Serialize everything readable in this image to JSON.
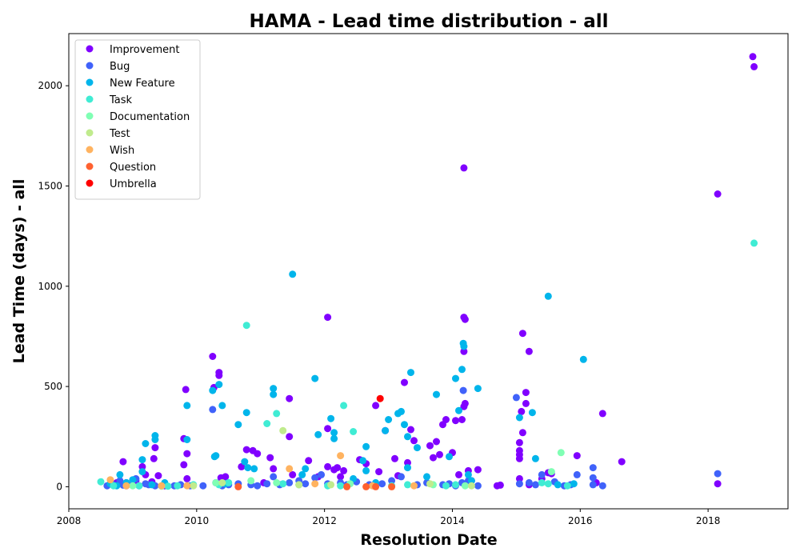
{
  "chart_data": {
    "type": "scatter",
    "title": "HAMA - Lead time distribution - all",
    "xlabel": "Resolution Date",
    "ylabel": "Lead Time (days) - all",
    "xlim": [
      2008.0,
      2019.25
    ],
    "ylim": [
      -110,
      2260
    ],
    "x_ticks": [
      "2008",
      "2010",
      "2012",
      "2014",
      "2016",
      "2018"
    ],
    "x_tick_values": [
      2008,
      2010,
      2012,
      2014,
      2016,
      2018
    ],
    "y_ticks": [
      "0",
      "500",
      "1000",
      "1500",
      "2000"
    ],
    "y_tick_values": [
      0,
      500,
      1000,
      1500,
      2000
    ],
    "grid": false,
    "legend_position": "top-left",
    "series": [
      {
        "name": "Improvement",
        "color": "#8000ff",
        "points": [
          [
            2008.75,
            20
          ],
          [
            2008.85,
            125
          ],
          [
            2008.9,
            5
          ],
          [
            2009.0,
            10
          ],
          [
            2009.05,
            30
          ],
          [
            2009.15,
            100
          ],
          [
            2009.2,
            60
          ],
          [
            2009.3,
            25
          ],
          [
            2009.33,
            140
          ],
          [
            2009.35,
            195
          ],
          [
            2009.4,
            55
          ],
          [
            2009.5,
            5
          ],
          [
            2009.8,
            240
          ],
          [
            2009.8,
            110
          ],
          [
            2009.83,
            485
          ],
          [
            2009.85,
            165
          ],
          [
            2009.85,
            40
          ],
          [
            2010.25,
            650
          ],
          [
            2010.27,
            495
          ],
          [
            2010.35,
            570
          ],
          [
            2010.35,
            555
          ],
          [
            2010.38,
            45
          ],
          [
            2010.45,
            50
          ],
          [
            2010.7,
            100
          ],
          [
            2010.78,
            185
          ],
          [
            2010.88,
            180
          ],
          [
            2010.95,
            165
          ],
          [
            2011.05,
            20
          ],
          [
            2011.15,
            145
          ],
          [
            2011.2,
            90
          ],
          [
            2011.45,
            440
          ],
          [
            2011.45,
            250
          ],
          [
            2011.5,
            60
          ],
          [
            2011.75,
            130
          ],
          [
            2011.9,
            50
          ],
          [
            2012.05,
            845
          ],
          [
            2012.05,
            290
          ],
          [
            2012.05,
            100
          ],
          [
            2012.15,
            85
          ],
          [
            2012.2,
            95
          ],
          [
            2012.25,
            50
          ],
          [
            2012.3,
            80
          ],
          [
            2012.55,
            135
          ],
          [
            2012.65,
            115
          ],
          [
            2012.8,
            405
          ],
          [
            2012.85,
            75
          ],
          [
            2012.95,
            280
          ],
          [
            2013.1,
            140
          ],
          [
            2013.15,
            55
          ],
          [
            2013.25,
            520
          ],
          [
            2013.3,
            120
          ],
          [
            2013.35,
            285
          ],
          [
            2013.4,
            230
          ],
          [
            2013.65,
            205
          ],
          [
            2013.7,
            145
          ],
          [
            2013.75,
            225
          ],
          [
            2013.8,
            160
          ],
          [
            2013.85,
            310
          ],
          [
            2013.9,
            335
          ],
          [
            2014.0,
            170
          ],
          [
            2014.05,
            330
          ],
          [
            2014.1,
            60
          ],
          [
            2014.15,
            335
          ],
          [
            2014.18,
            1590
          ],
          [
            2014.18,
            845
          ],
          [
            2014.2,
            835
          ],
          [
            2014.18,
            675
          ],
          [
            2014.18,
            400
          ],
          [
            2014.2,
            415
          ],
          [
            2014.25,
            80
          ],
          [
            2014.3,
            30
          ],
          [
            2014.4,
            85
          ],
          [
            2014.7,
            5
          ],
          [
            2014.75,
            8
          ],
          [
            2015.05,
            220
          ],
          [
            2015.05,
            180
          ],
          [
            2015.05,
            160
          ],
          [
            2015.05,
            140
          ],
          [
            2015.08,
            375
          ],
          [
            2015.1,
            765
          ],
          [
            2015.15,
            470
          ],
          [
            2015.15,
            415
          ],
          [
            2015.2,
            675
          ],
          [
            2015.1,
            270
          ],
          [
            2015.05,
            40
          ],
          [
            2015.2,
            10
          ],
          [
            2015.4,
            40
          ],
          [
            2015.5,
            70
          ],
          [
            2015.55,
            65
          ],
          [
            2015.95,
            155
          ],
          [
            2016.25,
            20
          ],
          [
            2016.35,
            365
          ],
          [
            2016.65,
            125
          ],
          [
            2018.15,
            1460
          ],
          [
            2018.15,
            15
          ],
          [
            2018.7,
            2145
          ],
          [
            2018.72,
            2095
          ]
        ]
      },
      {
        "name": "Bug",
        "color": "#4062fa",
        "points": [
          [
            2008.6,
            5
          ],
          [
            2008.7,
            10
          ],
          [
            2008.8,
            30
          ],
          [
            2008.85,
            8
          ],
          [
            2008.9,
            20
          ],
          [
            2009.05,
            40
          ],
          [
            2009.1,
            5
          ],
          [
            2009.2,
            15
          ],
          [
            2009.25,
            10
          ],
          [
            2009.35,
            5
          ],
          [
            2009.5,
            10
          ],
          [
            2009.65,
            5
          ],
          [
            2009.75,
            10
          ],
          [
            2009.9,
            5
          ],
          [
            2010.1,
            5
          ],
          [
            2010.25,
            385
          ],
          [
            2010.3,
            20
          ],
          [
            2010.4,
            5
          ],
          [
            2010.5,
            10
          ],
          [
            2010.65,
            15
          ],
          [
            2010.85,
            10
          ],
          [
            2010.95,
            5
          ],
          [
            2011.1,
            15
          ],
          [
            2011.2,
            50
          ],
          [
            2011.3,
            10
          ],
          [
            2011.45,
            20
          ],
          [
            2011.6,
            30
          ],
          [
            2011.7,
            15
          ],
          [
            2011.85,
            45
          ],
          [
            2011.95,
            60
          ],
          [
            2012.05,
            15
          ],
          [
            2012.25,
            20
          ],
          [
            2012.35,
            10
          ],
          [
            2012.5,
            25
          ],
          [
            2012.7,
            10
          ],
          [
            2012.9,
            15
          ],
          [
            2013.05,
            30
          ],
          [
            2013.2,
            50
          ],
          [
            2013.45,
            10
          ],
          [
            2013.6,
            20
          ],
          [
            2013.85,
            10
          ],
          [
            2013.95,
            15
          ],
          [
            2014.05,
            5
          ],
          [
            2014.15,
            20
          ],
          [
            2014.17,
            480
          ],
          [
            2014.25,
            30
          ],
          [
            2014.4,
            5
          ],
          [
            2015.0,
            445
          ],
          [
            2015.05,
            15
          ],
          [
            2015.2,
            20
          ],
          [
            2015.3,
            10
          ],
          [
            2015.4,
            60
          ],
          [
            2015.6,
            25
          ],
          [
            2015.75,
            5
          ],
          [
            2015.85,
            10
          ],
          [
            2015.95,
            60
          ],
          [
            2016.2,
            95
          ],
          [
            2016.2,
            45
          ],
          [
            2016.2,
            10
          ],
          [
            2016.35,
            5
          ],
          [
            2018.15,
            65
          ]
        ]
      },
      {
        "name": "New Feature",
        "color": "#00b5eb",
        "points": [
          [
            2008.65,
            15
          ],
          [
            2008.75,
            5
          ],
          [
            2008.8,
            60
          ],
          [
            2008.9,
            20
          ],
          [
            2009.0,
            35
          ],
          [
            2009.15,
            135
          ],
          [
            2009.15,
            75
          ],
          [
            2009.2,
            215
          ],
          [
            2009.35,
            255
          ],
          [
            2009.35,
            235
          ],
          [
            2009.3,
            10
          ],
          [
            2009.5,
            20
          ],
          [
            2009.85,
            405
          ],
          [
            2009.85,
            235
          ],
          [
            2010.25,
            480
          ],
          [
            2010.3,
            155
          ],
          [
            2010.28,
            150
          ],
          [
            2010.35,
            510
          ],
          [
            2010.4,
            405
          ],
          [
            2010.45,
            15
          ],
          [
            2010.65,
            310
          ],
          [
            2010.75,
            125
          ],
          [
            2010.78,
            370
          ],
          [
            2010.8,
            95
          ],
          [
            2010.9,
            90
          ],
          [
            2011.2,
            490
          ],
          [
            2011.2,
            460
          ],
          [
            2011.5,
            1060
          ],
          [
            2011.65,
            60
          ],
          [
            2011.7,
            90
          ],
          [
            2011.85,
            540
          ],
          [
            2011.9,
            260
          ],
          [
            2012.1,
            340
          ],
          [
            2012.15,
            240
          ],
          [
            2012.15,
            270
          ],
          [
            2012.45,
            40
          ],
          [
            2012.6,
            130
          ],
          [
            2012.65,
            200
          ],
          [
            2012.65,
            80
          ],
          [
            2012.8,
            20
          ],
          [
            2012.95,
            280
          ],
          [
            2013.0,
            335
          ],
          [
            2013.15,
            365
          ],
          [
            2013.2,
            375
          ],
          [
            2013.25,
            310
          ],
          [
            2013.3,
            250
          ],
          [
            2013.3,
            95
          ],
          [
            2013.35,
            570
          ],
          [
            2013.45,
            195
          ],
          [
            2013.6,
            50
          ],
          [
            2013.75,
            460
          ],
          [
            2013.95,
            150
          ],
          [
            2014.05,
            540
          ],
          [
            2014.1,
            380
          ],
          [
            2014.15,
            585
          ],
          [
            2014.17,
            715
          ],
          [
            2014.18,
            700
          ],
          [
            2014.25,
            60
          ],
          [
            2014.3,
            30
          ],
          [
            2014.4,
            490
          ],
          [
            2015.05,
            345
          ],
          [
            2015.25,
            370
          ],
          [
            2015.3,
            140
          ],
          [
            2015.5,
            950
          ],
          [
            2015.65,
            10
          ],
          [
            2016.05,
            635
          ],
          [
            2015.9,
            15
          ]
        ]
      },
      {
        "name": "Task",
        "color": "#40ecd4",
        "points": [
          [
            2008.5,
            25
          ],
          [
            2008.7,
            5
          ],
          [
            2009.1,
            5
          ],
          [
            2009.55,
            3
          ],
          [
            2009.7,
            5
          ],
          [
            2009.95,
            10
          ],
          [
            2010.35,
            10
          ],
          [
            2010.5,
            20
          ],
          [
            2010.78,
            805
          ],
          [
            2011.1,
            315
          ],
          [
            2011.25,
            365
          ],
          [
            2011.35,
            15
          ],
          [
            2011.6,
            10
          ],
          [
            2012.05,
            5
          ],
          [
            2012.25,
            5
          ],
          [
            2012.3,
            405
          ],
          [
            2012.45,
            275
          ],
          [
            2013.05,
            5
          ],
          [
            2013.3,
            10
          ],
          [
            2013.9,
            5
          ],
          [
            2014.05,
            10
          ],
          [
            2015.4,
            20
          ],
          [
            2015.5,
            15
          ],
          [
            2015.8,
            5
          ],
          [
            2018.72,
            1215
          ]
        ]
      },
      {
        "name": "Documentation",
        "color": "#80ffb4",
        "points": [
          [
            2009.0,
            5
          ],
          [
            2009.45,
            3
          ],
          [
            2010.3,
            20
          ],
          [
            2010.85,
            30
          ],
          [
            2011.25,
            20
          ],
          [
            2012.4,
            15
          ],
          [
            2013.7,
            10
          ],
          [
            2014.2,
            5
          ],
          [
            2015.55,
            75
          ],
          [
            2015.7,
            170
          ]
        ]
      },
      {
        "name": "Test",
        "color": "#c0eb8d",
        "points": [
          [
            2009.95,
            5
          ],
          [
            2010.4,
            20
          ],
          [
            2011.35,
            280
          ],
          [
            2011.6,
            10
          ],
          [
            2012.1,
            10
          ],
          [
            2013.65,
            15
          ],
          [
            2014.3,
            5
          ]
        ]
      },
      {
        "name": "Wish",
        "color": "#ffb360",
        "points": [
          [
            2008.65,
            35
          ],
          [
            2008.9,
            5
          ],
          [
            2009.45,
            5
          ],
          [
            2009.85,
            5
          ],
          [
            2011.45,
            90
          ],
          [
            2011.85,
            15
          ],
          [
            2012.25,
            155
          ],
          [
            2012.75,
            5
          ],
          [
            2013.4,
            5
          ]
        ]
      },
      {
        "name": "Question",
        "color": "#ff6130",
        "points": [
          [
            2010.65,
            0
          ],
          [
            2012.35,
            0
          ],
          [
            2012.65,
            0
          ],
          [
            2012.8,
            0
          ],
          [
            2013.05,
            0
          ]
        ]
      },
      {
        "name": "Umbrella",
        "color": "#ff0000",
        "points": [
          [
            2012.87,
            440
          ]
        ]
      }
    ]
  }
}
